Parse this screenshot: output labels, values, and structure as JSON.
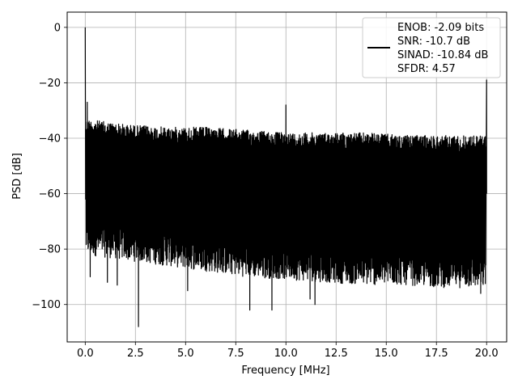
{
  "chart_data": {
    "type": "line",
    "title": "",
    "xlabel": "Frequency [MHz]",
    "ylabel": "PSD [dB]",
    "xlim": [
      -0.9,
      21.0
    ],
    "ylim": [
      -113.5,
      5.5
    ],
    "grid": true,
    "legend_position": "top-right",
    "x_ticks": [
      0.0,
      2.5,
      5.0,
      7.5,
      10.0,
      12.5,
      15.0,
      17.5,
      20.0
    ],
    "x_tick_labels": [
      "0.0",
      "2.5",
      "5.0",
      "7.5",
      "10.0",
      "12.5",
      "15.0",
      "17.5",
      "20.0"
    ],
    "y_ticks": [
      0,
      -20,
      -40,
      -60,
      -80,
      -100
    ],
    "y_tick_labels": [
      "0",
      "−20",
      "−40",
      "−60",
      "−80",
      "−100"
    ],
    "series": [
      {
        "name": "ENOB: -2.09 bits\nSNR: -10.7 dB\nSINAD: -10.84 dB\nSFDR: 4.57",
        "color": "#000000",
        "noise_top_db": [
          -33,
          -35,
          -36,
          -36,
          -37,
          -38,
          -38,
          -38,
          -39,
          -39
        ],
        "noise_bottom_db": [
          -76,
          -78,
          -80,
          -82,
          -84,
          -85,
          -86,
          -87,
          -87,
          -88
        ],
        "x_segments_mhz": [
          0,
          2,
          4,
          6,
          8,
          10,
          12,
          14,
          16,
          18,
          20
        ],
        "peaks": [
          {
            "x": 0.0,
            "y": 0
          },
          {
            "x": 0.1,
            "y": -27
          },
          {
            "x": 10.0,
            "y": -28
          },
          {
            "x": 20.0,
            "y": -19
          }
        ],
        "dips": [
          {
            "x": 0.25,
            "y": -90
          },
          {
            "x": 1.1,
            "y": -92
          },
          {
            "x": 1.6,
            "y": -93
          },
          {
            "x": 2.65,
            "y": -108
          },
          {
            "x": 5.1,
            "y": -95
          },
          {
            "x": 8.2,
            "y": -102
          },
          {
            "x": 9.3,
            "y": -102
          },
          {
            "x": 11.2,
            "y": -98
          },
          {
            "x": 11.45,
            "y": -100
          },
          {
            "x": 15.3,
            "y": -91
          },
          {
            "x": 17.3,
            "y": -93
          },
          {
            "x": 19.7,
            "y": -96
          }
        ]
      }
    ]
  },
  "legend": {
    "lines": [
      "ENOB: -2.09 bits",
      "SNR: -10.7 dB",
      "SINAD: -10.84 dB",
      "SFDR: 4.57"
    ]
  }
}
